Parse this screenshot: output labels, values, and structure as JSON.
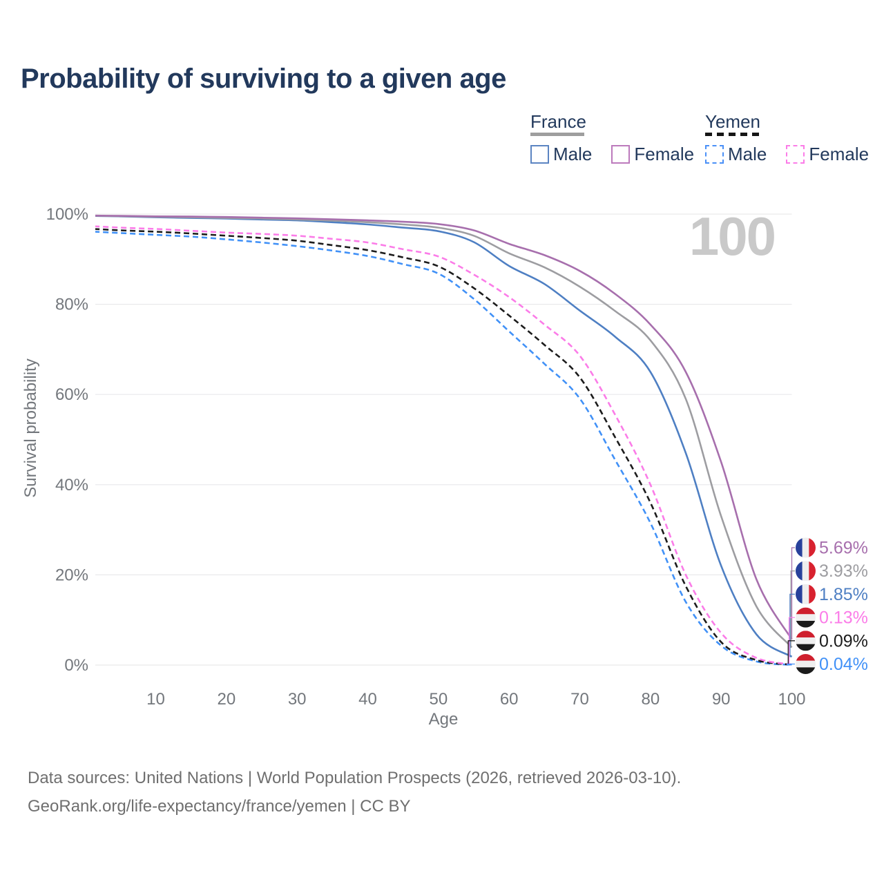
{
  "title": "Probability of surviving to a given age",
  "watermark": "100",
  "legend": {
    "france": {
      "header": "France",
      "male": "Male",
      "female": "Female"
    },
    "yemen": {
      "header": "Yemen",
      "male": "Male",
      "female": "Female"
    }
  },
  "footer": {
    "line1": "Data sources: United Nations | World Population Prospects (2026, retrieved 2026-03-10).",
    "line2": "GeoRank.org/life-expectancy/france/yemen | CC BY"
  },
  "colors": {
    "title_text": "#22395c",
    "axis_text": "#73777c",
    "gridline": "#e9e9eb",
    "watermark": "#c9c9c9",
    "footer_text": "#6f6f6f",
    "legend_france_male_swatch": "#5b84c2",
    "legend_france_female_swatch": "#bc7abc",
    "legend_yemen_male_swatch": "#4a90f7",
    "legend_yemen_female_swatch": "#fb7ce8",
    "flag_france_stripes": [
      "#28419b",
      "#eeeeee",
      "#d8222f"
    ],
    "flag_yemen_stripes": [
      "#cf202e",
      "#efefef",
      "#1b1b1b"
    ]
  },
  "chart_data": {
    "type": "line",
    "title": "Probability of surviving to a given age",
    "xlabel": "Age",
    "ylabel": "Survival probability",
    "xlim": [
      1.5,
      100
    ],
    "ylim": [
      0,
      100
    ],
    "grid": "horizontal",
    "legend_position": "top-right",
    "watermark": "100",
    "x_ticks": [
      10,
      20,
      30,
      40,
      50,
      60,
      70,
      80,
      90,
      100
    ],
    "y_ticks": [
      {
        "value": 0,
        "label": "0%"
      },
      {
        "value": 20,
        "label": "20%"
      },
      {
        "value": 40,
        "label": "40%"
      },
      {
        "value": 60,
        "label": "60%"
      },
      {
        "value": 80,
        "label": "80%"
      },
      {
        "value": 100,
        "label": "100%"
      }
    ],
    "ages": [
      0,
      5,
      10,
      15,
      20,
      25,
      30,
      35,
      40,
      45,
      50,
      55,
      60,
      65,
      70,
      75,
      80,
      85,
      90,
      95,
      100
    ],
    "series": [
      {
        "name": "France Female",
        "country": "France",
        "sex": "Female",
        "line_style": "solid",
        "color": "#a76fad",
        "flag": "france",
        "end_label": "5.69%",
        "end_value": 5.69,
        "values": [
          99.7,
          99.6,
          99.5,
          99.45,
          99.35,
          99.2,
          99.05,
          98.85,
          98.6,
          98.3,
          97.8,
          96.4,
          93.4,
          90.9,
          87.4,
          82.3,
          75.5,
          65.0,
          45.0,
          19.0,
          5.69
        ]
      },
      {
        "name": "France",
        "country": "France",
        "sex": "All",
        "line_style": "solid",
        "color": "#9d9da1",
        "flag": "france",
        "end_label": "3.93%",
        "end_value": 3.93,
        "values": [
          99.65,
          99.55,
          99.4,
          99.3,
          99.15,
          99.0,
          98.8,
          98.55,
          98.2,
          97.7,
          97.0,
          95.2,
          91.3,
          88.2,
          83.9,
          78.5,
          72.0,
          59.0,
          33.0,
          13.0,
          3.93
        ]
      },
      {
        "name": "France Male",
        "country": "France",
        "sex": "Male",
        "line_style": "solid",
        "color": "#4e7fc3",
        "flag": "france",
        "end_label": "1.85%",
        "end_value": 1.85,
        "values": [
          99.6,
          99.5,
          99.3,
          99.15,
          99.0,
          98.8,
          98.6,
          98.2,
          97.7,
          97.0,
          96.2,
          93.8,
          88.5,
          84.5,
          78.6,
          72.8,
          65.0,
          47.0,
          22.0,
          6.8,
          1.85
        ]
      },
      {
        "name": "Yemen Female",
        "country": "Yemen",
        "sex": "Female",
        "line_style": "dashed",
        "color": "#fb7ce8",
        "flag": "yemen",
        "end_label": "0.13%",
        "end_value": 0.13,
        "values": [
          97.4,
          97.0,
          96.7,
          96.3,
          95.9,
          95.6,
          95.2,
          94.5,
          93.7,
          92.2,
          90.6,
          86.6,
          81.6,
          75.5,
          68.6,
          55.5,
          40.0,
          20.0,
          7.1,
          1.6,
          0.13
        ]
      },
      {
        "name": "Yemen",
        "country": "Yemen",
        "sex": "All",
        "line_style": "dashed",
        "color": "#1c1c1c",
        "flag": "yemen",
        "end_label": "0.09%",
        "end_value": 0.09,
        "values": [
          96.8,
          96.4,
          96.1,
          95.7,
          95.2,
          94.7,
          94.1,
          93.1,
          92.0,
          90.4,
          88.4,
          83.6,
          77.5,
          71.0,
          63.8,
          50.5,
          36.0,
          17.5,
          5.1,
          1.1,
          0.09
        ]
      },
      {
        "name": "Yemen Male",
        "country": "Yemen",
        "sex": "Male",
        "line_style": "dashed",
        "color": "#4191f7",
        "flag": "yemen",
        "end_label": "0.04%",
        "end_value": 0.04,
        "values": [
          96.2,
          95.8,
          95.4,
          95.0,
          94.4,
          93.7,
          92.9,
          91.9,
          90.7,
          88.9,
          86.8,
          81.2,
          74.0,
          66.8,
          59.1,
          45.5,
          31.5,
          14.0,
          4.3,
          0.8,
          0.04
        ]
      }
    ]
  }
}
